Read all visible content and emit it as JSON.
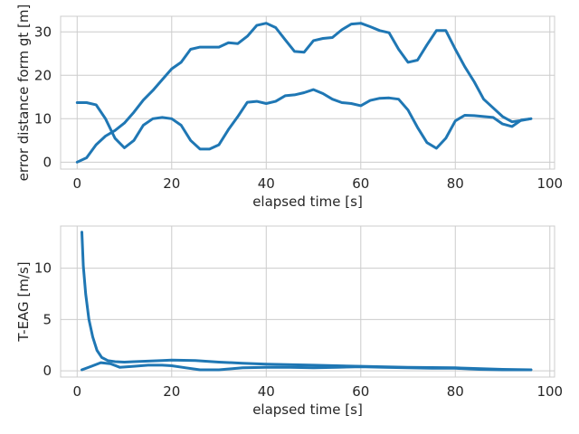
{
  "chart_data": [
    {
      "type": "line",
      "xlabel": "elapsed time [s]",
      "ylabel": "error distance form gt [m]",
      "xlim": [
        -3.5,
        101
      ],
      "ylim": [
        -1.6,
        33.6
      ],
      "xticks": [
        0,
        20,
        40,
        60,
        80,
        100
      ],
      "yticks": [
        0,
        10,
        20,
        30
      ],
      "grid": true,
      "color": "#1f77b4",
      "series": [
        {
          "x": [
            0,
            2,
            4,
            6,
            8,
            10,
            12,
            14,
            16,
            18,
            20,
            22,
            24,
            26,
            28,
            30,
            32,
            34,
            36,
            38,
            40,
            42,
            44,
            46,
            48,
            50,
            52,
            54,
            56,
            58,
            60,
            62,
            64,
            66,
            68,
            70,
            72,
            74,
            76,
            78,
            80,
            82,
            84,
            86,
            88,
            90,
            92,
            94,
            96
          ],
          "y": [
            0,
            1,
            4,
            6,
            7.3,
            9,
            11.5,
            14.3,
            16.5,
            19,
            21.5,
            23,
            26,
            26.5,
            26.5,
            26.5,
            27.5,
            27.3,
            29,
            31.5,
            32,
            31,
            28.2,
            25.5,
            25.3,
            28,
            28.5,
            28.7,
            30.5,
            31.8,
            32,
            31.2,
            30.3,
            29.8,
            26,
            23,
            23.5,
            27,
            30.3,
            30.3,
            26,
            22,
            18.5,
            14.5,
            12.5,
            10.5,
            9.3,
            9.6,
            10
          ]
        },
        {
          "x": [
            0,
            2,
            4,
            6,
            8,
            10,
            12,
            14,
            16,
            18,
            20,
            22,
            24,
            26,
            28,
            30,
            32,
            34,
            36,
            38,
            40,
            42,
            44,
            46,
            48,
            50,
            52,
            54,
            56,
            58,
            60,
            62,
            64,
            66,
            68,
            70,
            72,
            74,
            76,
            78,
            80,
            82,
            84,
            86,
            88,
            90,
            92,
            94,
            96
          ],
          "y": [
            13.7,
            13.7,
            13.2,
            10,
            5.5,
            3.3,
            5,
            8.5,
            10,
            10.3,
            10,
            8.5,
            5,
            3,
            3,
            4,
            7.5,
            10.5,
            13.8,
            14,
            13.5,
            14,
            15.3,
            15.5,
            16,
            16.7,
            15.8,
            14.5,
            13.7,
            13.5,
            13,
            14.2,
            14.7,
            14.8,
            14.5,
            12,
            8,
            4.5,
            3.2,
            5.5,
            9.5,
            10.8,
            10.7,
            10.5,
            10.3,
            8.8,
            8.2,
            9.7,
            10
          ]
        }
      ]
    },
    {
      "type": "line",
      "xlabel": "elapsed time [s]",
      "ylabel": "T-EAG [m/s]",
      "xlim": [
        -3.5,
        101
      ],
      "ylim": [
        -0.6,
        14.1
      ],
      "xticks": [
        0,
        20,
        40,
        60,
        80,
        100
      ],
      "yticks": [
        0,
        5,
        10
      ],
      "grid": true,
      "color": "#1f77b4",
      "series": [
        {
          "x": [
            1,
            1.3,
            1.8,
            2.5,
            3.3,
            4.2,
            5.2,
            6.5,
            8,
            10,
            12,
            15,
            18,
            20,
            25,
            30,
            35,
            40,
            50,
            60,
            70,
            80,
            90,
            96
          ],
          "y": [
            13.5,
            10.2,
            7.5,
            5,
            3.3,
            2,
            1.3,
            1,
            0.9,
            0.85,
            0.9,
            0.95,
            1,
            1.05,
            1,
            0.85,
            0.75,
            0.65,
            0.55,
            0.45,
            0.35,
            0.3,
            0.15,
            0.1
          ]
        },
        {
          "x": [
            1,
            3,
            5,
            7,
            9,
            12,
            15,
            18,
            20,
            23,
            26,
            30,
            35,
            40,
            45,
            50,
            55,
            60,
            65,
            70,
            75,
            80,
            85,
            90,
            96
          ],
          "y": [
            0.1,
            0.45,
            0.8,
            0.7,
            0.35,
            0.45,
            0.55,
            0.55,
            0.5,
            0.3,
            0.1,
            0.1,
            0.3,
            0.35,
            0.35,
            0.3,
            0.35,
            0.4,
            0.35,
            0.3,
            0.25,
            0.25,
            0.15,
            0.1,
            0.1
          ]
        }
      ]
    }
  ]
}
